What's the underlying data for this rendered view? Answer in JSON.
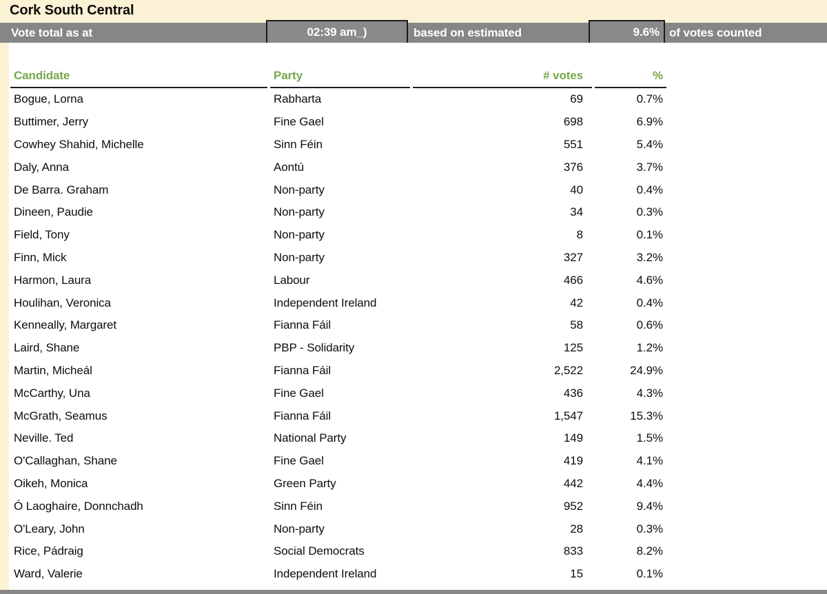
{
  "page": {
    "title": "Cork South Central",
    "colors": {
      "background_cream": "#FBF1D4",
      "bar_gray": "#868686",
      "header_green": "#76A74C",
      "box_border_black": "#1b1b1b",
      "table_background": "#ffffff"
    }
  },
  "status_bar": {
    "label_prefix": "Vote total as at",
    "time_value": "02:39 am_)",
    "label_middle": "based on estimated",
    "counted_percent": "9.6%",
    "label_suffix": "of votes counted"
  },
  "table": {
    "columns": [
      "Candidate",
      "Party",
      "# votes",
      "%"
    ],
    "rows": [
      {
        "candidate": "Bogue, Lorna",
        "party": "Rabharta",
        "votes": "69",
        "pct": "0.7%"
      },
      {
        "candidate": "Buttimer, Jerry",
        "party": "Fine Gael",
        "votes": "698",
        "pct": "6.9%"
      },
      {
        "candidate": "Cowhey Shahid, Michelle",
        "party": "Sinn Féin",
        "votes": "551",
        "pct": "5.4%"
      },
      {
        "candidate": "Daly, Anna",
        "party": "Aontú",
        "votes": "376",
        "pct": "3.7%"
      },
      {
        "candidate": "De Barra. Graham",
        "party": "Non-party",
        "votes": "40",
        "pct": "0.4%"
      },
      {
        "candidate": "Dineen, Paudie",
        "party": "Non-party",
        "votes": "34",
        "pct": "0.3%"
      },
      {
        "candidate": "Field, Tony",
        "party": "Non-party",
        "votes": "8",
        "pct": "0.1%"
      },
      {
        "candidate": "Finn, Mick",
        "party": "Non-party",
        "votes": "327",
        "pct": "3.2%"
      },
      {
        "candidate": "Harmon, Laura",
        "party": "Labour",
        "votes": "466",
        "pct": "4.6%"
      },
      {
        "candidate": "Houlihan, Veronica",
        "party": "Independent Ireland",
        "votes": "42",
        "pct": "0.4%"
      },
      {
        "candidate": "Kenneally, Margaret",
        "party": "Fianna Fáil",
        "votes": "58",
        "pct": "0.6%"
      },
      {
        "candidate": "Laird, Shane",
        "party": "PBP - Solidarity",
        "votes": "125",
        "pct": "1.2%"
      },
      {
        "candidate": "Martin, Micheál",
        "party": "Fianna Fáil",
        "votes": "2,522",
        "pct": "24.9%"
      },
      {
        "candidate": "McCarthy, Una",
        "party": "Fine Gael",
        "votes": "436",
        "pct": "4.3%"
      },
      {
        "candidate": "McGrath, Seamus",
        "party": "Fianna Fáil",
        "votes": "1,547",
        "pct": "15.3%"
      },
      {
        "candidate": "Neville. Ted",
        "party": "National Party",
        "votes": "149",
        "pct": "1.5%"
      },
      {
        "candidate": "O'Callaghan, Shane",
        "party": "Fine Gael",
        "votes": "419",
        "pct": "4.1%"
      },
      {
        "candidate": "Oikeh, Monica",
        "party": "Green Party",
        "votes": "442",
        "pct": "4.4%"
      },
      {
        "candidate": "Ó Laoghaire, Donnchadh",
        "party": "Sinn Féin",
        "votes": "952",
        "pct": "9.4%"
      },
      {
        "candidate": "O'Leary, John",
        "party": "Non-party",
        "votes": "28",
        "pct": "0.3%"
      },
      {
        "candidate": "Rice, Pádraig",
        "party": "Social Democrats",
        "votes": "833",
        "pct": "8.2%"
      },
      {
        "candidate": "Ward, Valerie",
        "party": "Independent Ireland",
        "votes": "15",
        "pct": "0.1%"
      }
    ]
  }
}
